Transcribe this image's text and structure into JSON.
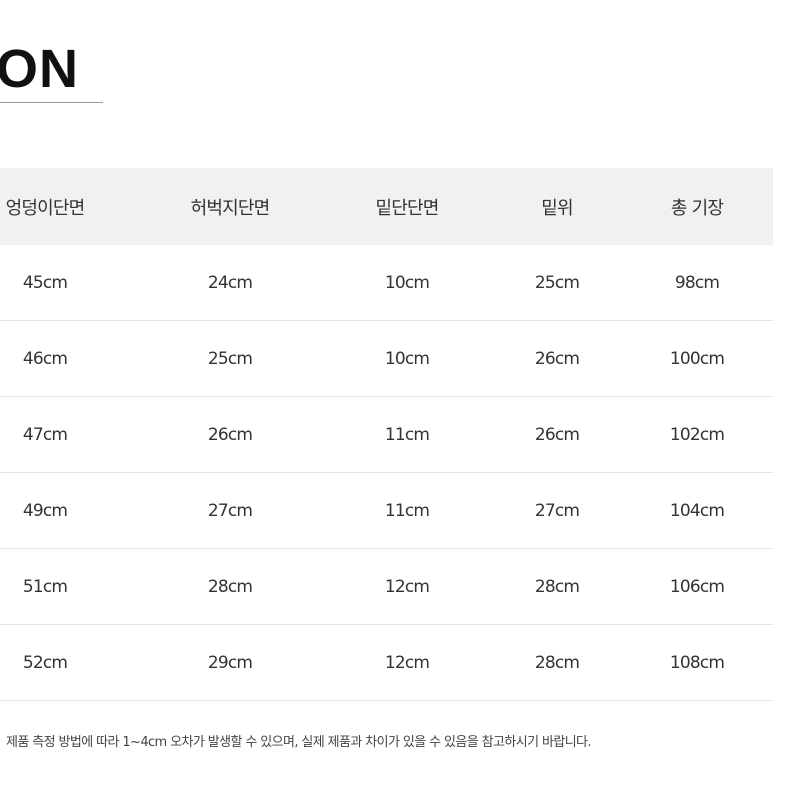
{
  "title": "ON",
  "table": {
    "headers": [
      "엉덩이단면",
      "허벅지단면",
      "밑단단면",
      "밑위",
      "총 기장"
    ],
    "rows": [
      [
        "45cm",
        "24cm",
        "10cm",
        "25cm",
        "98cm"
      ],
      [
        "46cm",
        "25cm",
        "10cm",
        "26cm",
        "100cm"
      ],
      [
        "47cm",
        "26cm",
        "11cm",
        "26cm",
        "102cm"
      ],
      [
        "49cm",
        "27cm",
        "11cm",
        "27cm",
        "104cm"
      ],
      [
        "51cm",
        "28cm",
        "12cm",
        "28cm",
        "106cm"
      ],
      [
        "52cm",
        "29cm",
        "12cm",
        "28cm",
        "108cm"
      ]
    ]
  },
  "note": "제품 측정 방법에 따라 1~4cm 오차가 발생할 수 있으며, 실제 제품과 차이가 있을 수 있음을 참고하시기 바랍니다."
}
